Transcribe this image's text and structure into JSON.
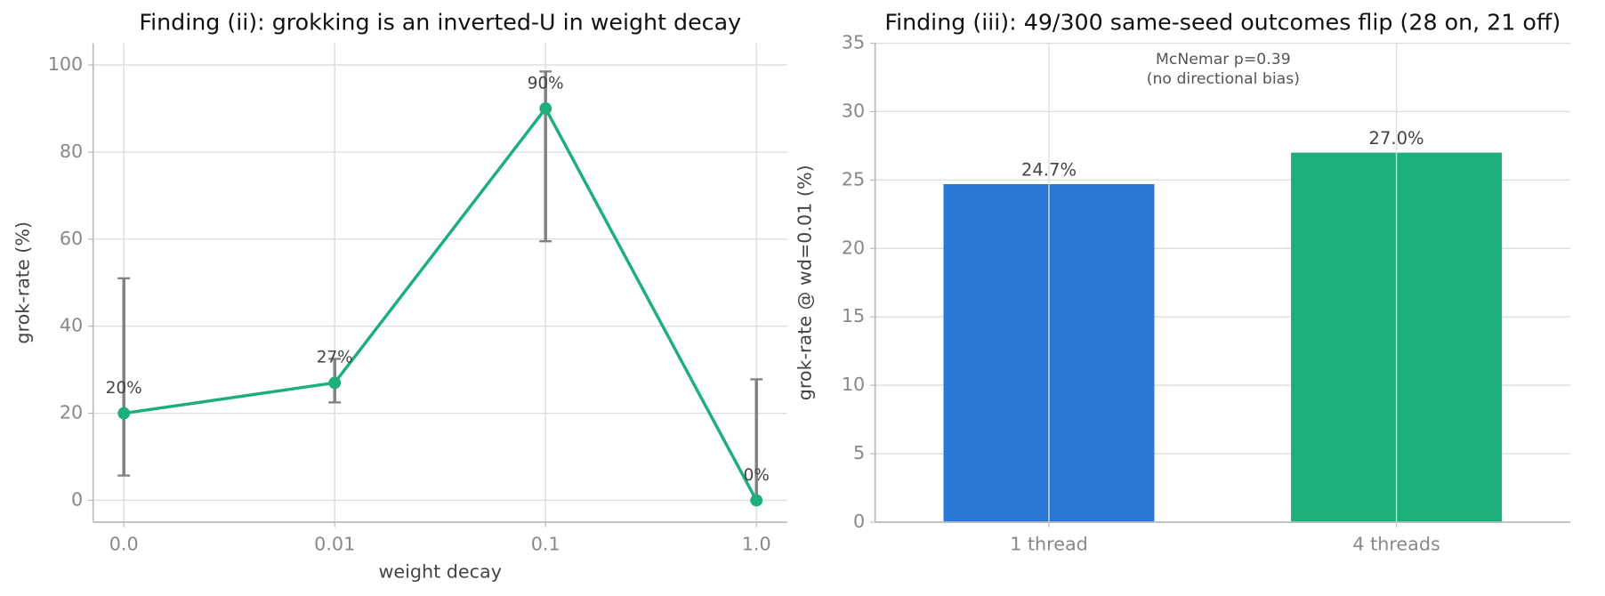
{
  "chart_data": [
    {
      "type": "line",
      "title": "Finding (ii): grokking is an inverted-U in weight decay",
      "xlabel": "weight decay",
      "ylabel": "grok-rate (%)",
      "categories": [
        "0.0",
        "0.01",
        "0.1",
        "1.0"
      ],
      "values": [
        20,
        27,
        90,
        0
      ],
      "value_labels": [
        "20%",
        "27%",
        "90%",
        "0%"
      ],
      "ci_low": [
        5.7,
        22.5,
        59.5,
        0
      ],
      "ci_high": [
        51,
        32.5,
        98.5,
        27.8
      ],
      "color": "#1daf7a",
      "error_color": "#808080",
      "ylim": [
        -5,
        105
      ],
      "yticks": [
        0,
        20,
        40,
        60,
        80,
        100
      ],
      "grid": true
    },
    {
      "type": "bar",
      "title": "Finding (iii): 49/300 same-seed outcomes flip (28 on, 21 off)",
      "ylabel": "grok-rate @ wd=0.01 (%)",
      "categories": [
        "1 thread",
        "4 threads"
      ],
      "values": [
        24.7,
        27.0
      ],
      "value_labels": [
        "24.7%",
        "27.0%"
      ],
      "colors": [
        "#2a78d6",
        "#1daf7a"
      ],
      "annotation": [
        "McNemar p=0.39",
        "(no directional bias)"
      ],
      "ylim": [
        0,
        35
      ],
      "yticks": [
        0,
        5,
        10,
        15,
        20,
        25,
        30,
        35
      ],
      "grid": true
    }
  ]
}
